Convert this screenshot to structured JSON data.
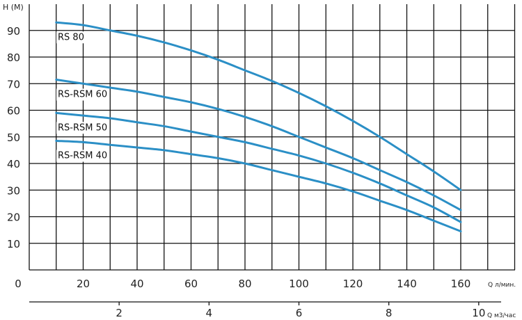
{
  "chart_data": {
    "type": "line",
    "ylabel": "H (M)",
    "xlabel": "Q л/мин.",
    "x2label": "Q м3/час",
    "xlim": [
      0,
      180
    ],
    "ylim": [
      0,
      97
    ],
    "x_ticks": [
      "0",
      "20",
      "40",
      "60",
      "80",
      "100",
      "120",
      "140",
      "160"
    ],
    "y_ticks": [
      "10",
      "20",
      "30",
      "40",
      "50",
      "60",
      "70",
      "80",
      "90"
    ],
    "x2_ticks": [
      "2",
      "4",
      "6",
      "8",
      "10"
    ],
    "grid": true,
    "colors": {
      "curve": "#2b8fc6",
      "grid": "#111111"
    },
    "series": [
      {
        "name": "RS 80",
        "x": [
          10,
          20,
          30,
          40,
          50,
          60,
          70,
          80,
          90,
          100,
          110,
          120,
          130,
          140,
          150,
          160
        ],
        "y": [
          93,
          92,
          90,
          88,
          85.5,
          82.5,
          79,
          75,
          71,
          66.5,
          61.5,
          56,
          50,
          43.5,
          37,
          30
        ]
      },
      {
        "name": "RS-RSM 60",
        "x": [
          10,
          20,
          30,
          40,
          50,
          60,
          70,
          80,
          90,
          100,
          110,
          120,
          130,
          140,
          150,
          160
        ],
        "y": [
          71.5,
          70,
          68.5,
          67,
          65,
          63,
          60.5,
          57.5,
          54,
          50,
          46,
          42,
          37.5,
          33,
          28,
          22.5
        ]
      },
      {
        "name": "RS-RSM 50",
        "x": [
          10,
          20,
          30,
          40,
          50,
          60,
          70,
          80,
          90,
          100,
          110,
          120,
          130,
          140,
          150,
          160
        ],
        "y": [
          59,
          58,
          57,
          55.5,
          54,
          52,
          50,
          48,
          45.5,
          43,
          40,
          36.5,
          32.5,
          28,
          23.5,
          18
        ]
      },
      {
        "name": "RS-RSM 40",
        "x": [
          10,
          20,
          30,
          40,
          50,
          60,
          70,
          80,
          90,
          100,
          110,
          120,
          130,
          140,
          150,
          160
        ],
        "y": [
          48.5,
          48,
          47,
          46,
          45,
          43.5,
          42,
          40,
          37.5,
          35,
          32.5,
          29.5,
          26,
          22.5,
          18.5,
          14.5
        ]
      }
    ]
  }
}
